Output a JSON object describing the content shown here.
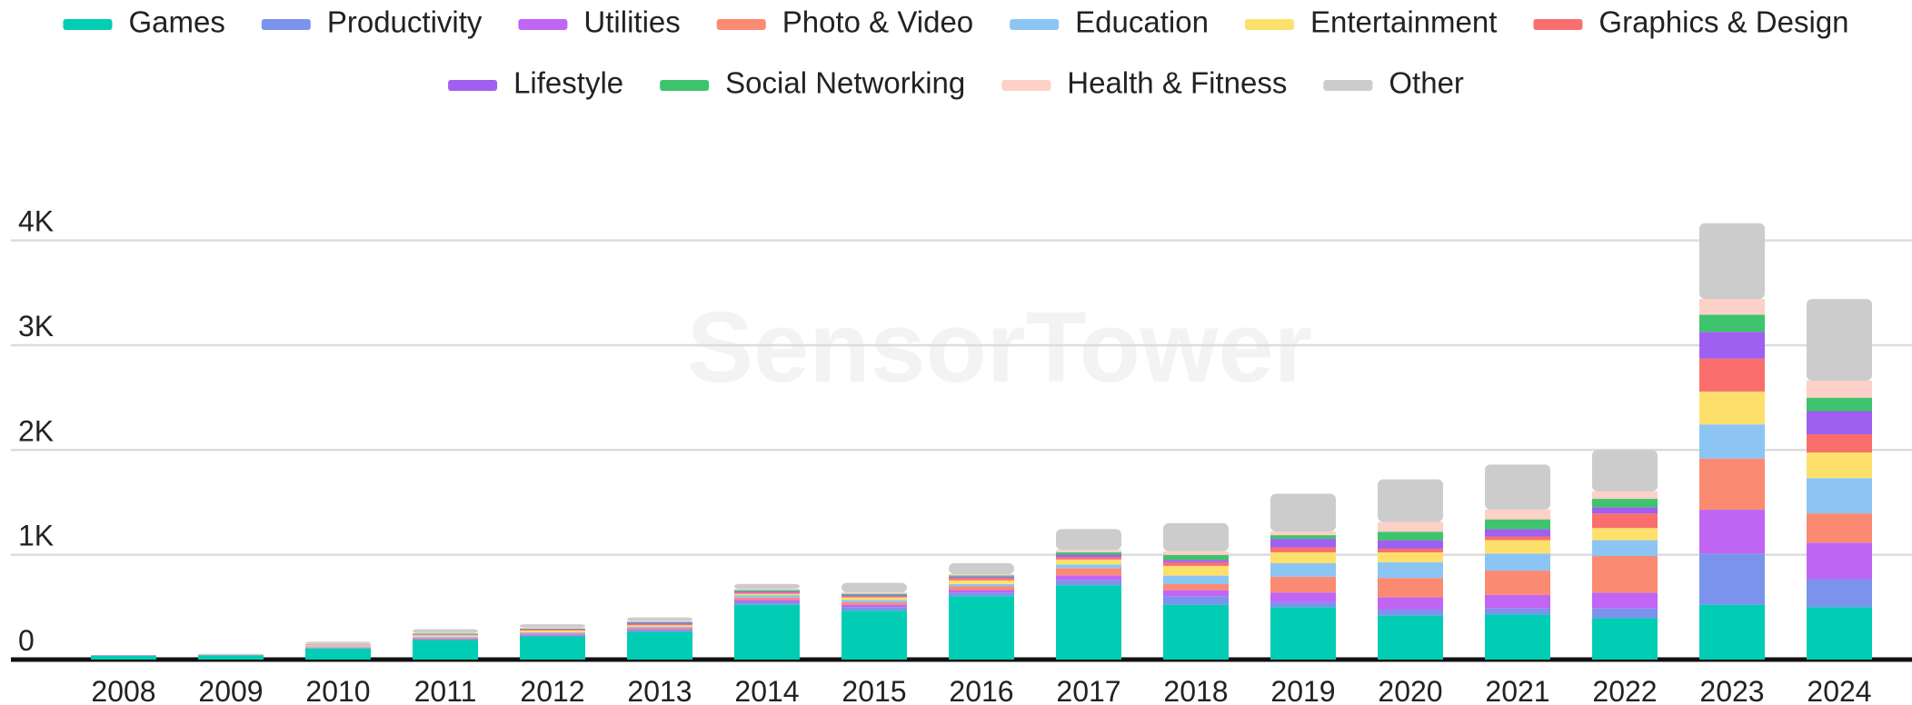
{
  "chart_data": {
    "type": "stacked_bar",
    "watermark": "SensorTower",
    "categories": [
      "2008",
      "2009",
      "2010",
      "2011",
      "2012",
      "2013",
      "2014",
      "2015",
      "2016",
      "2017",
      "2018",
      "2019",
      "2020",
      "2021",
      "2022",
      "2023",
      "2024"
    ],
    "series": [
      {
        "name": "Games",
        "color": "#00cdb4",
        "values": [
          35,
          40,
          105,
          186,
          221,
          267,
          523,
          465,
          605,
          709,
          523,
          500,
          419,
          430,
          395,
          523,
          500
        ]
      },
      {
        "name": "Productivity",
        "color": "#7b93ec",
        "values": [
          5,
          3,
          5,
          8,
          10,
          12,
          23,
          35,
          35,
          47,
          81,
          47,
          58,
          58,
          93,
          488,
          267
        ]
      },
      {
        "name": "Utilities",
        "color": "#c065f4",
        "values": [
          1,
          2,
          5,
          8,
          10,
          12,
          23,
          23,
          23,
          47,
          58,
          93,
          116,
          128,
          151,
          419,
          349
        ]
      },
      {
        "name": "Photo & Video",
        "color": "#fb8a73",
        "values": [
          1,
          2,
          5,
          8,
          10,
          12,
          23,
          23,
          35,
          70,
          58,
          151,
          186,
          233,
          349,
          488,
          279
        ]
      },
      {
        "name": "Education",
        "color": "#8cc5f3",
        "values": [
          1,
          2,
          8,
          10,
          12,
          12,
          23,
          23,
          23,
          35,
          81,
          128,
          151,
          163,
          151,
          326,
          337
        ]
      },
      {
        "name": "Entertainment",
        "color": "#fde06b",
        "values": [
          1,
          2,
          8,
          12,
          15,
          12,
          12,
          23,
          35,
          47,
          93,
          105,
          93,
          128,
          116,
          314,
          244
        ]
      },
      {
        "name": "Graphics & Design",
        "color": "#fa6e6e",
        "values": [
          0,
          0,
          3,
          5,
          8,
          12,
          12,
          12,
          23,
          23,
          35,
          47,
          35,
          35,
          140,
          314,
          174
        ]
      },
      {
        "name": "Lifestyle",
        "color": "#9f5ff0",
        "values": [
          0,
          0,
          3,
          5,
          5,
          12,
          12,
          12,
          12,
          23,
          23,
          81,
          81,
          70,
          58,
          256,
          221
        ]
      },
      {
        "name": "Social Networking",
        "color": "#3ec46d",
        "values": [
          0,
          0,
          3,
          5,
          5,
          8,
          12,
          12,
          12,
          23,
          47,
          35,
          81,
          93,
          81,
          163,
          128
        ]
      },
      {
        "name": "Health & Fitness",
        "color": "#fdd0c8",
        "values": [
          0,
          2,
          5,
          8,
          8,
          8,
          12,
          12,
          12,
          23,
          35,
          35,
          93,
          93,
          70,
          151,
          163
        ]
      },
      {
        "name": "Other",
        "color": "#cccccc",
        "values": [
          1,
          2,
          20,
          35,
          33,
          35,
          47,
          93,
          105,
          198,
          267,
          360,
          407,
          430,
          395,
          721,
          779
        ]
      }
    ],
    "ylim": [
      0,
      4300
    ],
    "yticks": [
      0,
      {
        "value": 1000,
        "label": "1K"
      },
      {
        "value": 2000,
        "label": "2K"
      },
      {
        "value": 3000,
        "label": "3K"
      },
      {
        "value": 4000,
        "label": "4K"
      }
    ],
    "grid": true,
    "legend": "top"
  }
}
